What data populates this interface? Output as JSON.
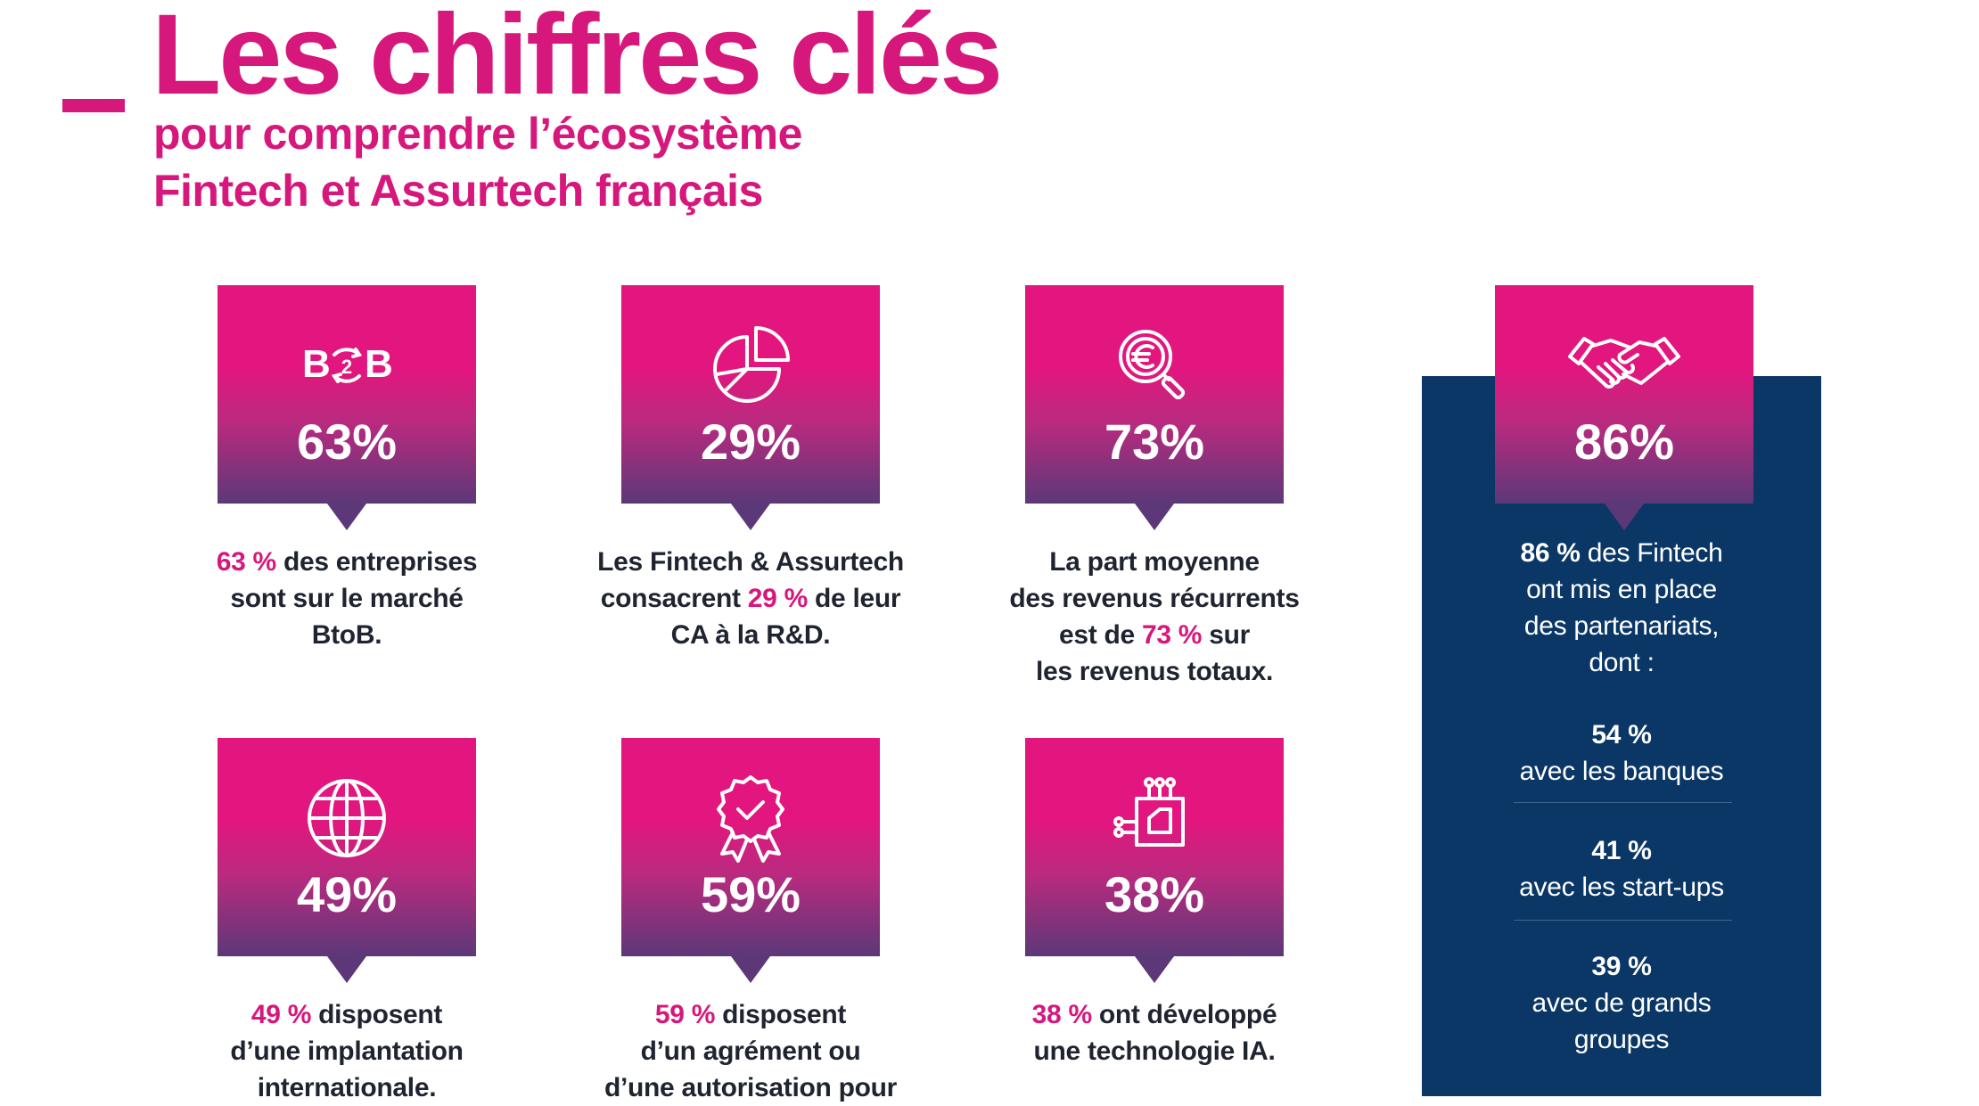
{
  "header": {
    "title": "Les chiffres clés",
    "subtitle_line1": "pour comprendre l’écosystème",
    "subtitle_line2": "Fintech et Assurtech français"
  },
  "colors": {
    "accent": "#d6177c",
    "navy": "#0a3766",
    "text": "#1f2430"
  },
  "cards": [
    {
      "icon": "b2b-icon",
      "percent": "63%",
      "hl": "63 %",
      "line1_rest": " des entreprises",
      "line2": "sont sur le marché",
      "line3": "BtoB."
    },
    {
      "icon": "pie-chart-icon",
      "percent": "29%",
      "line1": "Les Fintech & Assurtech",
      "line2_pre": "consacrent ",
      "hl": "29 %",
      "line2_post": " de leur",
      "line3": "CA à la R&D."
    },
    {
      "icon": "euro-magnifier-icon",
      "percent": "73%",
      "line1": "La part moyenne",
      "line2": "des revenus récurrents",
      "line3_pre": "est de ",
      "hl": "73 %",
      "line3_post": " sur",
      "line4": "les revenus totaux."
    },
    {
      "icon": "globe-icon",
      "percent": "49%",
      "hl": "49 %",
      "line1_rest": " disposent",
      "line2": "d’une implantation",
      "line3": "internationale."
    },
    {
      "icon": "award-badge-icon",
      "percent": "59%",
      "hl": "59 %",
      "line1_rest": " disposent",
      "line2": "d’un agrément ou",
      "line3": "d’une autorisation pour"
    },
    {
      "icon": "chip-icon",
      "percent": "38%",
      "hl": "38 %",
      "line1_rest": " ont développé",
      "line2": "une technologie IA."
    }
  ],
  "partnerships": {
    "icon": "handshake-icon",
    "percent": "86%",
    "intro_hl": "86 %",
    "intro_line1_rest": " des Fintech",
    "intro_line2": "ont mis en place",
    "intro_line3": "des partenariats,",
    "intro_line4": "dont :",
    "items": [
      {
        "value": "54 %",
        "label": "avec les banques"
      },
      {
        "value": "41 %",
        "label": "avec les start-ups"
      },
      {
        "value": "39 %",
        "label1": "avec de grands",
        "label2": "groupes"
      }
    ]
  }
}
